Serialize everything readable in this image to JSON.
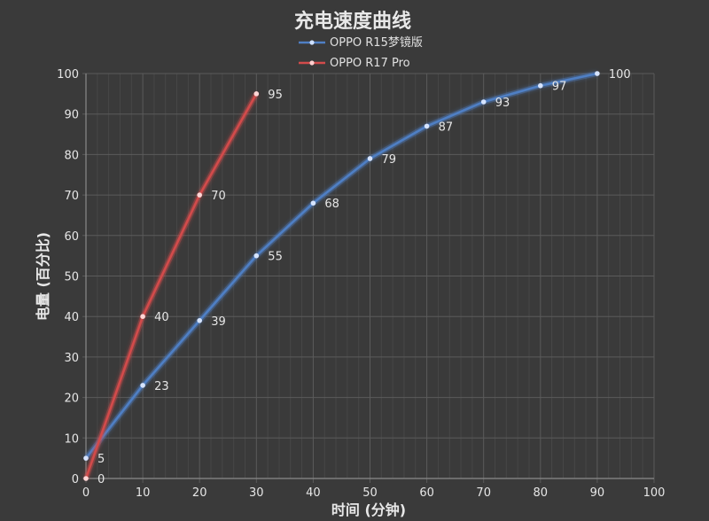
{
  "chart_data": {
    "type": "line",
    "title": "充电速度曲线",
    "xlabel": "时间 (分钟)",
    "ylabel": "电量 (百分比)",
    "xlim": [
      0,
      100
    ],
    "ylim": [
      0,
      100
    ],
    "xticks": [
      0,
      10,
      20,
      30,
      40,
      50,
      60,
      70,
      80,
      90,
      100
    ],
    "yticks": [
      0,
      10,
      20,
      30,
      40,
      50,
      60,
      70,
      80,
      90,
      100
    ],
    "grid": true,
    "legend_position": "top-center",
    "series": [
      {
        "name": "OPPO R15梦镜版",
        "color": "#4f7fc4",
        "x": [
          0,
          10,
          20,
          30,
          40,
          50,
          60,
          70,
          80,
          90
        ],
        "y": [
          5,
          23,
          39,
          55,
          68,
          79,
          87,
          93,
          97,
          100
        ]
      },
      {
        "name": "OPPO R17 Pro",
        "color": "#d24b4b",
        "x": [
          0,
          10,
          20,
          30
        ],
        "y": [
          0,
          40,
          70,
          95
        ]
      }
    ]
  }
}
